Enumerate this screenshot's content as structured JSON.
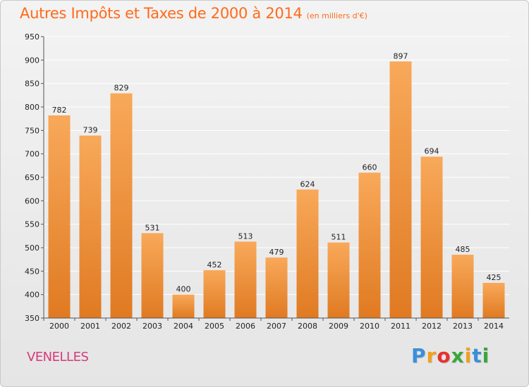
{
  "header": {
    "title": "Autres Impôts et Taxes de 2000 à 2014",
    "unit": "(en milliers d'€)"
  },
  "footer": {
    "commune": "VENELLES",
    "logo_letters": [
      "P",
      "r",
      "o",
      "x",
      "i",
      "t",
      "i"
    ],
    "logo_colors": [
      "#3a8fd9",
      "#f0a020",
      "#e83030",
      "#3aa63a",
      "#f0a020",
      "#3a8fd9",
      "#3aa63a"
    ]
  },
  "colors": {
    "bar_light": "#f8a95a",
    "bar_dark": "#e07a22",
    "grid": "#ffffff",
    "title": "#ff6a1a",
    "commune": "#d63a7a"
  },
  "chart_data": {
    "type": "bar",
    "title": "Autres Impôts et Taxes de 2000 à 2014",
    "subtitle": "(en milliers d'€)",
    "xlabel": "",
    "ylabel": "",
    "categories": [
      "2000",
      "2001",
      "2002",
      "2003",
      "2004",
      "2005",
      "2006",
      "2007",
      "2008",
      "2009",
      "2010",
      "2011",
      "2012",
      "2013",
      "2014"
    ],
    "values": [
      782,
      739,
      829,
      531,
      400,
      452,
      513,
      479,
      624,
      511,
      660,
      897,
      694,
      485,
      425
    ],
    "ylim": [
      350,
      950
    ],
    "yticks": [
      350,
      400,
      450,
      500,
      550,
      600,
      650,
      700,
      750,
      800,
      850,
      900,
      950
    ],
    "grid": true,
    "legend": "none"
  }
}
